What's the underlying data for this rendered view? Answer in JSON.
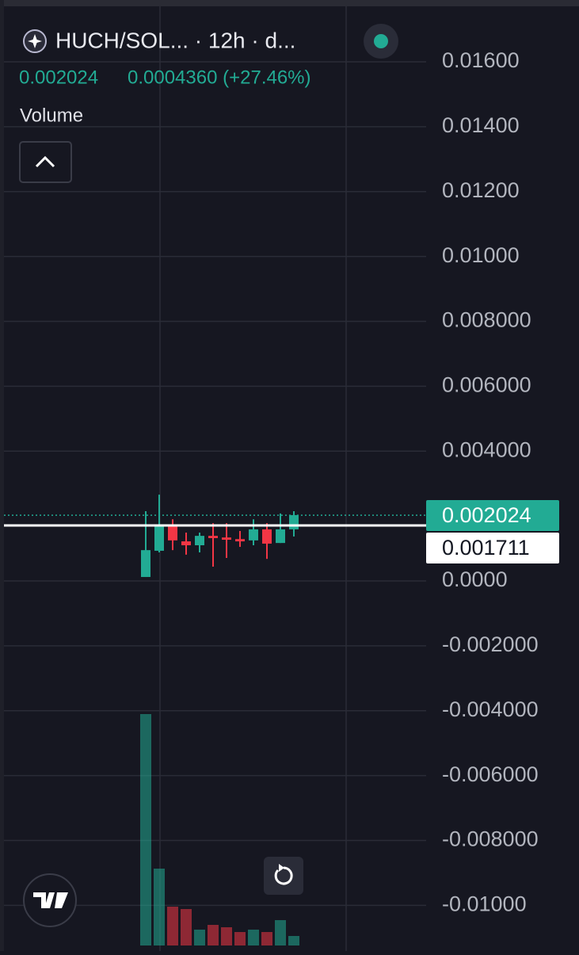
{
  "chart_data": {
    "type": "candlestick",
    "symbol": "HUCH/SOL... · 12h · d...",
    "last": "0.002024",
    "change": "0.0004360 (+27.46%)",
    "volume_title": "Volume",
    "open": [
      0.000122,
      0.00093,
      0.00173,
      0.00122,
      0.0011,
      0.00139,
      0.00134,
      0.00129,
      0.00125,
      0.00159,
      0.00117,
      0.00159
    ],
    "high": [
      0.00215,
      0.00266,
      0.0019,
      0.00149,
      0.00149,
      0.00178,
      0.00178,
      0.00154,
      0.0019,
      0.00178,
      0.00208,
      0.00215
    ],
    "low": [
      0.000122,
      0.00088,
      0.00095,
      0.00081,
      0.00088,
      0.00044,
      0.00071,
      0.00105,
      0.0011,
      0.00068,
      0.00117,
      0.00137
    ],
    "close": [
      0.00095,
      0.00173,
      0.00125,
      0.0011,
      0.00139,
      0.00132,
      0.00127,
      0.00122,
      0.00159,
      0.00115,
      0.00159,
      0.00203
    ],
    "volume": [
      292,
      97,
      49,
      46,
      20,
      26,
      23,
      17,
      20,
      17,
      32,
      12
    ],
    "up_color": "#22ab94",
    "down_color": "#f23645",
    "ylim": [
      -0.011407,
      0.017906
    ],
    "yticks": [
      {
        "value": 0.016,
        "label": "0.01600"
      },
      {
        "value": 0.014,
        "label": "0.01400"
      },
      {
        "value": 0.012,
        "label": "0.01200"
      },
      {
        "value": 0.01,
        "label": "0.01000"
      },
      {
        "value": 0.008,
        "label": "0.008000"
      },
      {
        "value": 0.006,
        "label": "0.006000"
      },
      {
        "value": 0.004,
        "label": "0.004000"
      },
      {
        "value": 0,
        "label": "0.0000"
      },
      {
        "value": -0.002,
        "label": "-0.002000"
      },
      {
        "value": -0.004,
        "label": "-0.004000"
      },
      {
        "value": -0.006,
        "label": "-0.006000"
      },
      {
        "value": -0.008,
        "label": "-0.008000"
      },
      {
        "value": -0.01,
        "label": "-0.01000"
      }
    ],
    "grid": true,
    "price_lines": [
      {
        "value": 0.002024,
        "color": "#22ab94"
      },
      {
        "value": 0.001711,
        "color": "#ffffff"
      }
    ]
  }
}
